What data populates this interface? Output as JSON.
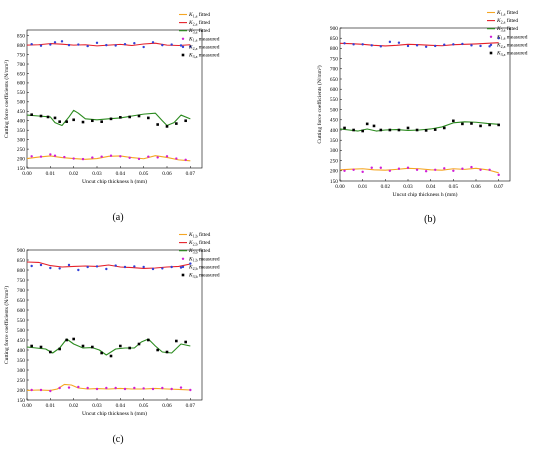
{
  "colors": {
    "K1_fitted": "#f5a623",
    "K2_fitted": "#e5202a",
    "K3_fitted": "#2a8a1e",
    "K1_measured": "#d01fd6",
    "K2_measured": "#3340d8",
    "K3_measured": "#000000"
  },
  "chart_data": [
    {
      "panel": "(a)",
      "type": "scatter",
      "xlabel": "Uncut chip thickness h (mm)",
      "ylabel": "Cutting force coefficients (N/mm²)",
      "xlim": [
        0.0,
        0.075
      ],
      "ylim": [
        150,
        880
      ],
      "xticks": [
        "0.00",
        "0.01",
        "0.02",
        "0.03",
        "0.04",
        "0.05",
        "0.06",
        "0.07"
      ],
      "yticks": [
        "150",
        "200",
        "250",
        "300",
        "350",
        "400",
        "450",
        "500",
        "550",
        "600",
        "650",
        "700",
        "750",
        "800",
        "850"
      ],
      "legend": [
        "K_{1,a} fitted",
        "K_{2,a} fitted",
        "K_{3,a} fitted",
        "K_{1,a} measured",
        "K_{2,a} measured",
        "K_{3,a} measured"
      ],
      "series": [
        {
          "kind": "fitted",
          "color": "K1_fitted",
          "x": [
            0.0,
            0.005,
            0.01,
            0.015,
            0.02,
            0.025,
            0.03,
            0.035,
            0.04,
            0.045,
            0.05,
            0.055,
            0.06,
            0.065,
            0.07
          ],
          "y": [
            200,
            208,
            214,
            205,
            200,
            196,
            200,
            212,
            214,
            205,
            199,
            215,
            206,
            193,
            188
          ]
        },
        {
          "kind": "fitted",
          "color": "K2_fitted",
          "x": [
            0.0,
            0.005,
            0.01,
            0.015,
            0.02,
            0.025,
            0.03,
            0.035,
            0.04,
            0.045,
            0.05,
            0.055,
            0.06,
            0.065,
            0.07
          ],
          "y": [
            800,
            802,
            808,
            805,
            800,
            802,
            796,
            800,
            804,
            798,
            806,
            810,
            800,
            798,
            802
          ]
        },
        {
          "kind": "fitted",
          "color": "K3_fitted",
          "x": [
            0.0,
            0.005,
            0.01,
            0.012,
            0.015,
            0.018,
            0.02,
            0.022,
            0.025,
            0.03,
            0.035,
            0.04,
            0.045,
            0.05,
            0.055,
            0.058,
            0.06,
            0.063,
            0.066,
            0.07
          ],
          "y": [
            430,
            425,
            420,
            390,
            375,
            420,
            455,
            440,
            410,
            405,
            410,
            415,
            425,
            435,
            440,
            400,
            375,
            390,
            430,
            410
          ]
        },
        {
          "kind": "measured",
          "marker": "circle",
          "color": "K1_measured",
          "x": [
            0.002,
            0.006,
            0.01,
            0.012,
            0.016,
            0.02,
            0.024,
            0.028,
            0.032,
            0.036,
            0.04,
            0.044,
            0.048,
            0.052,
            0.056,
            0.06,
            0.064,
            0.068
          ],
          "y": [
            212,
            210,
            222,
            215,
            208,
            200,
            197,
            205,
            210,
            215,
            212,
            204,
            198,
            210,
            206,
            212,
            200,
            193
          ]
        },
        {
          "kind": "measured",
          "marker": "circle",
          "color": "K2_measured",
          "x": [
            0.002,
            0.006,
            0.01,
            0.012,
            0.015,
            0.018,
            0.022,
            0.026,
            0.03,
            0.034,
            0.038,
            0.042,
            0.046,
            0.05,
            0.054,
            0.058,
            0.062,
            0.066,
            0.07
          ],
          "y": [
            805,
            797,
            803,
            815,
            820,
            800,
            803,
            795,
            812,
            800,
            798,
            805,
            810,
            790,
            815,
            800,
            803,
            798,
            792
          ]
        },
        {
          "kind": "measured",
          "marker": "square",
          "color": "K3_measured",
          "x": [
            0.002,
            0.006,
            0.009,
            0.012,
            0.014,
            0.017,
            0.02,
            0.024,
            0.028,
            0.032,
            0.036,
            0.04,
            0.044,
            0.048,
            0.052,
            0.056,
            0.06,
            0.064,
            0.068
          ],
          "y": [
            432,
            425,
            420,
            415,
            395,
            395,
            405,
            393,
            400,
            395,
            410,
            418,
            420,
            425,
            415,
            380,
            370,
            385,
            400
          ]
        }
      ]
    },
    {
      "panel": "(b)",
      "type": "scatter",
      "xlabel": "Uncut chip thickness h (mm)",
      "ylabel": "Cutting force coefficients (N/mm²)",
      "xlim": [
        0.0,
        0.075
      ],
      "ylim": [
        150,
        900
      ],
      "xticks": [
        "0.00",
        "0.01",
        "0.02",
        "0.03",
        "0.04",
        "0.05",
        "0.06",
        "0.07"
      ],
      "yticks": [
        "150",
        "200",
        "250",
        "300",
        "350",
        "400",
        "450",
        "500",
        "550",
        "600",
        "650",
        "700",
        "750",
        "800",
        "850",
        "900"
      ],
      "legend": [
        "K_{1,a} fitted",
        "K_{2,a} fitted",
        "K_{3,a} fitted",
        "K_{1,a} measured",
        "K_{2,a} measured",
        "K_{3,a} measured"
      ],
      "series": [
        {
          "kind": "fitted",
          "color": "K1_fitted",
          "x": [
            0.0,
            0.005,
            0.01,
            0.015,
            0.02,
            0.025,
            0.03,
            0.035,
            0.04,
            0.045,
            0.05,
            0.055,
            0.06,
            0.065,
            0.07
          ],
          "y": [
            205,
            208,
            210,
            205,
            203,
            207,
            212,
            210,
            205,
            203,
            210,
            207,
            212,
            205,
            190
          ]
        },
        {
          "kind": "fitted",
          "color": "K2_fitted",
          "x": [
            0.0,
            0.005,
            0.01,
            0.015,
            0.02,
            0.025,
            0.03,
            0.035,
            0.04,
            0.045,
            0.05,
            0.055,
            0.06,
            0.065,
            0.07
          ],
          "y": [
            825,
            823,
            820,
            815,
            812,
            815,
            820,
            818,
            815,
            813,
            818,
            820,
            822,
            825,
            828
          ]
        },
        {
          "kind": "fitted",
          "color": "K3_fitted",
          "x": [
            0.0,
            0.004,
            0.008,
            0.012,
            0.016,
            0.02,
            0.025,
            0.03,
            0.035,
            0.04,
            0.045,
            0.05,
            0.055,
            0.06,
            0.065,
            0.07
          ],
          "y": [
            405,
            400,
            395,
            405,
            395,
            400,
            402,
            398,
            400,
            405,
            415,
            435,
            440,
            438,
            432,
            428
          ]
        },
        {
          "kind": "measured",
          "marker": "circle",
          "color": "K1_measured",
          "x": [
            0.002,
            0.006,
            0.01,
            0.014,
            0.018,
            0.022,
            0.026,
            0.03,
            0.034,
            0.038,
            0.042,
            0.046,
            0.05,
            0.054,
            0.058,
            0.062,
            0.066,
            0.07
          ],
          "y": [
            200,
            205,
            195,
            215,
            215,
            200,
            210,
            215,
            205,
            198,
            205,
            212,
            200,
            210,
            218,
            205,
            205,
            180
          ]
        },
        {
          "kind": "measured",
          "marker": "circle",
          "color": "K2_measured",
          "x": [
            0.002,
            0.006,
            0.01,
            0.014,
            0.018,
            0.022,
            0.026,
            0.03,
            0.034,
            0.038,
            0.042,
            0.046,
            0.05,
            0.054,
            0.058,
            0.062,
            0.066,
            0.07
          ],
          "y": [
            825,
            820,
            820,
            815,
            810,
            832,
            828,
            812,
            815,
            808,
            812,
            818,
            820,
            822,
            815,
            812,
            810,
            850
          ]
        },
        {
          "kind": "measured",
          "marker": "square",
          "color": "K3_measured",
          "x": [
            0.002,
            0.006,
            0.01,
            0.012,
            0.015,
            0.018,
            0.022,
            0.026,
            0.03,
            0.034,
            0.038,
            0.042,
            0.046,
            0.05,
            0.054,
            0.058,
            0.062,
            0.066,
            0.07
          ],
          "y": [
            410,
            400,
            395,
            430,
            420,
            400,
            400,
            400,
            410,
            400,
            398,
            402,
            410,
            445,
            430,
            432,
            420,
            425,
            425
          ]
        }
      ]
    },
    {
      "panel": "(c)",
      "type": "scatter",
      "xlabel": "Uncut chip thickness h (mm)",
      "ylabel": "Cutting force coefficients (N/mm²)",
      "xlim": [
        0.0,
        0.075
      ],
      "ylim": [
        150,
        900
      ],
      "xticks": [
        "0.00",
        "0.01",
        "0.02",
        "0.03",
        "0.04",
        "0.05",
        "0.06",
        "0.07"
      ],
      "yticks": [
        "150",
        "200",
        "250",
        "300",
        "350",
        "400",
        "450",
        "500",
        "550",
        "600",
        "650",
        "700",
        "750",
        "800",
        "850",
        "900"
      ],
      "legend": [
        "K_{1,b} fitted",
        "K_{2,b} fitted",
        "K_{3,b} fitted",
        "K_{1,b} measured",
        "K_{2,b} measured",
        "K_{3,b} measured"
      ],
      "series": [
        {
          "kind": "fitted",
          "color": "K1_fitted",
          "x": [
            0.0,
            0.005,
            0.01,
            0.013,
            0.016,
            0.019,
            0.022,
            0.026,
            0.03,
            0.035,
            0.04,
            0.045,
            0.05,
            0.055,
            0.06,
            0.065,
            0.07
          ],
          "y": [
            198,
            200,
            198,
            205,
            228,
            225,
            210,
            205,
            207,
            205,
            208,
            205,
            205,
            208,
            205,
            203,
            200
          ]
        },
        {
          "kind": "fitted",
          "color": "K2_fitted",
          "x": [
            0.0,
            0.005,
            0.01,
            0.015,
            0.02,
            0.025,
            0.03,
            0.035,
            0.04,
            0.045,
            0.05,
            0.055,
            0.06,
            0.065,
            0.07
          ],
          "y": [
            840,
            838,
            822,
            815,
            818,
            820,
            818,
            825,
            815,
            812,
            808,
            810,
            815,
            818,
            830
          ]
        },
        {
          "kind": "fitted",
          "color": "K3_fitted",
          "x": [
            0.0,
            0.004,
            0.008,
            0.011,
            0.014,
            0.017,
            0.02,
            0.024,
            0.028,
            0.031,
            0.034,
            0.038,
            0.042,
            0.046,
            0.049,
            0.052,
            0.055,
            0.058,
            0.062,
            0.066,
            0.07
          ],
          "y": [
            415,
            410,
            405,
            385,
            410,
            455,
            430,
            410,
            412,
            400,
            375,
            405,
            410,
            410,
            440,
            455,
            420,
            390,
            385,
            430,
            420
          ]
        },
        {
          "kind": "measured",
          "marker": "circle",
          "color": "K1_measured",
          "x": [
            0.002,
            0.006,
            0.01,
            0.014,
            0.018,
            0.022,
            0.026,
            0.03,
            0.034,
            0.038,
            0.042,
            0.046,
            0.05,
            0.054,
            0.058,
            0.062,
            0.066,
            0.07
          ],
          "y": [
            200,
            200,
            195,
            210,
            212,
            215,
            210,
            205,
            210,
            210,
            205,
            210,
            208,
            205,
            210,
            205,
            212,
            200
          ]
        },
        {
          "kind": "measured",
          "marker": "circle",
          "color": "K2_measured",
          "x": [
            0.002,
            0.006,
            0.01,
            0.014,
            0.018,
            0.022,
            0.026,
            0.03,
            0.034,
            0.038,
            0.042,
            0.046,
            0.05,
            0.054,
            0.058,
            0.062,
            0.066,
            0.07
          ],
          "y": [
            820,
            825,
            810,
            808,
            825,
            800,
            815,
            818,
            805,
            822,
            815,
            818,
            815,
            805,
            808,
            815,
            812,
            832
          ]
        },
        {
          "kind": "measured",
          "marker": "square",
          "color": "K3_measured",
          "x": [
            0.002,
            0.006,
            0.01,
            0.014,
            0.017,
            0.02,
            0.024,
            0.028,
            0.032,
            0.036,
            0.04,
            0.044,
            0.048,
            0.052,
            0.056,
            0.06,
            0.064,
            0.068
          ],
          "y": [
            420,
            415,
            390,
            405,
            450,
            455,
            420,
            415,
            385,
            370,
            420,
            410,
            430,
            450,
            400,
            390,
            445,
            440
          ]
        }
      ]
    }
  ]
}
